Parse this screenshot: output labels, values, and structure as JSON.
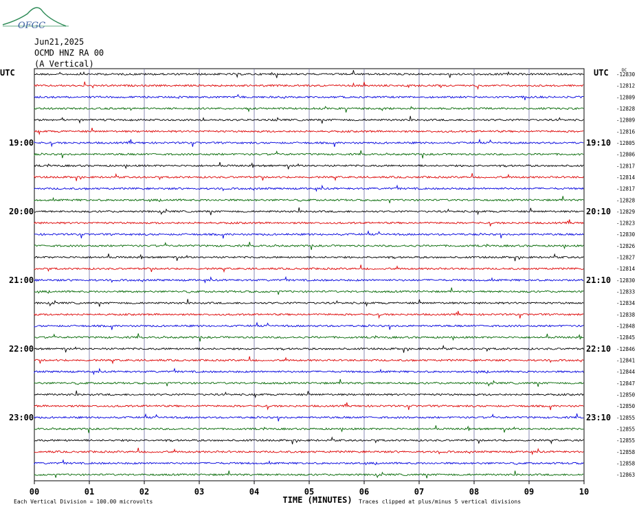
{
  "header": {
    "date": "Jun21,2025",
    "station": "OCMD HNZ RA 00",
    "component": "(A Vertical)"
  },
  "logo_text": "OFGC",
  "chart_data": {
    "type": "line",
    "title": "",
    "xlabel": "TIME (MINUTES)",
    "ylabel": "",
    "x_ticks": [
      "00",
      "01",
      "02",
      "03",
      "04",
      "05",
      "06",
      "07",
      "08",
      "09",
      "10"
    ],
    "xlim": [
      0,
      10
    ],
    "left_axis_label": "UTC",
    "right_axis_label": "UTC",
    "left_time_labels": [
      {
        "row": 6,
        "text": "19:00"
      },
      {
        "row": 12,
        "text": "20:00"
      },
      {
        "row": 18,
        "text": "21:00"
      },
      {
        "row": 24,
        "text": "22:00"
      },
      {
        "row": 30,
        "text": "23:00"
      }
    ],
    "right_time_labels": [
      {
        "row": 6,
        "text": "19:10"
      },
      {
        "row": 12,
        "text": "20:10"
      },
      {
        "row": 18,
        "text": "21:10"
      },
      {
        "row": 24,
        "text": "22:10"
      },
      {
        "row": 30,
        "text": "23:10"
      }
    ],
    "right_unit_label": "DC",
    "trace_colors": [
      "#000000",
      "#dd0000",
      "#0000dd",
      "#006600"
    ],
    "trace_offsets": [
      -12830,
      -12812,
      -12809,
      -12828,
      -12809,
      -12816,
      -12805,
      -12806,
      -12817,
      -12814,
      -12817,
      -12828,
      -12829,
      -12823,
      -12830,
      -12826,
      -12827,
      -12814,
      -12830,
      -12833,
      -12834,
      -12838,
      -12848,
      -12845,
      -12846,
      -12841,
      -12844,
      -12847,
      -12850,
      -12850,
      -12855,
      -12855,
      -12855,
      -12858,
      -12858,
      -12863
    ],
    "footer_left": "Each Vertical Division =  100.00 microvolts",
    "footer_right": "Traces clipped at plus/minus 5 vertical divisions",
    "grid": true
  }
}
